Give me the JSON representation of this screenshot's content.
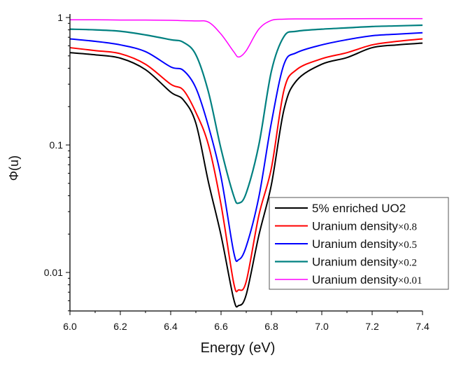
{
  "chart_data": {
    "type": "line",
    "xlabel": "Energy (eV)",
    "ylabel": "Φ(u)",
    "xlim": [
      6.0,
      7.4
    ],
    "ylim": [
      0.005,
      1.05
    ],
    "yscale": "log",
    "grid": false,
    "legend_position": "center-right",
    "x_ticks": [
      "6.0",
      "6.2",
      "6.4",
      "6.6",
      "6.8",
      "7.0",
      "7.2",
      "7.4"
    ],
    "y_ticks": [
      "0.01",
      "0.1",
      "1"
    ],
    "x": [
      6.0,
      6.1,
      6.2,
      6.3,
      6.4,
      6.45,
      6.5,
      6.55,
      6.6,
      6.65,
      6.67,
      6.7,
      6.75,
      6.8,
      6.85,
      6.9,
      7.0,
      7.1,
      7.2,
      7.3,
      7.4
    ],
    "series": [
      {
        "name": "5% enriched UO2",
        "legend_suffix": "",
        "color": "#000000",
        "width": 2,
        "values": [
          0.53,
          0.51,
          0.48,
          0.39,
          0.26,
          0.226,
          0.148,
          0.051,
          0.0195,
          0.0062,
          0.0055,
          0.0067,
          0.0195,
          0.049,
          0.19,
          0.32,
          0.43,
          0.485,
          0.58,
          0.61,
          0.63
        ]
      },
      {
        "name": "Uranium density",
        "legend_suffix": "×0.8",
        "color": "#ff0000",
        "width": 2,
        "values": [
          0.58,
          0.55,
          0.52,
          0.43,
          0.3,
          0.27,
          0.18,
          0.1,
          0.034,
          0.0083,
          0.0073,
          0.0085,
          0.028,
          0.066,
          0.27,
          0.39,
          0.475,
          0.53,
          0.61,
          0.65,
          0.68
        ]
      },
      {
        "name": "Uranium density",
        "legend_suffix": "×0.5",
        "color": "#0000ff",
        "width": 2,
        "values": [
          0.68,
          0.65,
          0.61,
          0.54,
          0.41,
          0.385,
          0.28,
          0.14,
          0.056,
          0.0145,
          0.0126,
          0.016,
          0.039,
          0.15,
          0.43,
          0.53,
          0.61,
          0.67,
          0.72,
          0.74,
          0.76
        ]
      },
      {
        "name": "Uranium density",
        "legend_suffix": "×0.2",
        "color": "#008080",
        "width": 2.2,
        "values": [
          0.81,
          0.8,
          0.78,
          0.73,
          0.67,
          0.64,
          0.51,
          0.26,
          0.093,
          0.04,
          0.035,
          0.042,
          0.1,
          0.38,
          0.71,
          0.78,
          0.81,
          0.83,
          0.85,
          0.86,
          0.87
        ]
      },
      {
        "name": "Uranium density",
        "legend_suffix": "×0.01",
        "color": "#ff00ff",
        "width": 1.5,
        "values": [
          0.96,
          0.96,
          0.955,
          0.955,
          0.95,
          0.945,
          0.94,
          0.92,
          0.74,
          0.54,
          0.49,
          0.55,
          0.81,
          0.95,
          0.97,
          0.975,
          0.975,
          0.978,
          0.98,
          0.98,
          0.98
        ]
      }
    ]
  }
}
